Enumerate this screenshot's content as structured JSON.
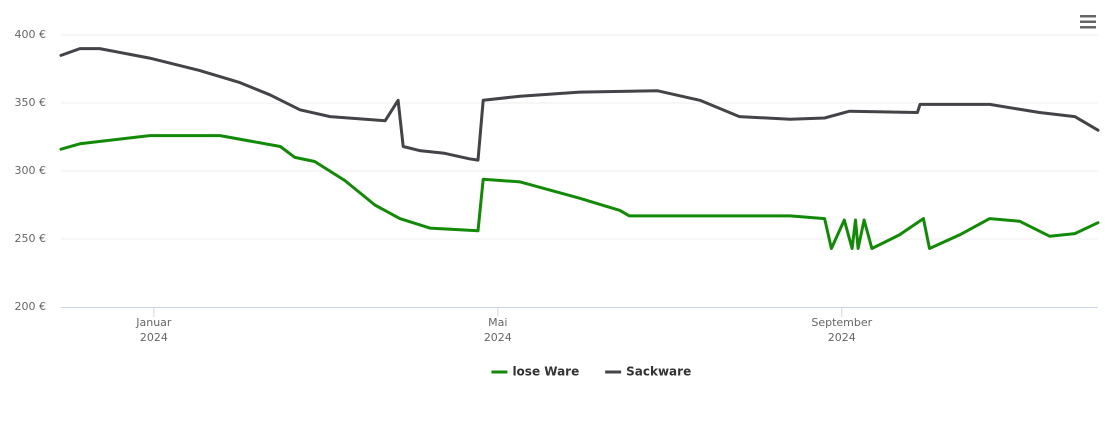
{
  "chart_data": {
    "type": "line",
    "xlim": [
      -0.08,
      11.98
    ],
    "xticks": [
      {
        "value": 1,
        "label": "Januar",
        "year": "2024"
      },
      {
        "value": 5,
        "label": "Mai",
        "year": "2024"
      },
      {
        "value": 9,
        "label": "September",
        "year": "2024"
      }
    ],
    "ylim": [
      200,
      400
    ],
    "yticks": [
      {
        "value": 200,
        "label": "200 €"
      },
      {
        "value": 250,
        "label": "250 €"
      },
      {
        "value": 300,
        "label": "300 €"
      },
      {
        "value": 350,
        "label": "350 €"
      },
      {
        "value": 400,
        "label": "400 €"
      }
    ],
    "grid": true,
    "legend": "bottom",
    "series": [
      {
        "name": "lose Ware",
        "color": "#138a07",
        "x": [
          -0.08,
          0.14,
          0.95,
          1.77,
          2.47,
          2.64,
          2.87,
          3.22,
          3.57,
          3.86,
          4.21,
          4.77,
          4.83,
          5.26,
          5.95,
          6.42,
          6.53,
          7.35,
          8.4,
          8.8,
          8.88,
          9.03,
          9.12,
          9.16,
          9.19,
          9.26,
          9.35,
          9.67,
          9.95,
          10.02,
          10.37,
          10.72,
          11.07,
          11.42,
          11.71,
          11.98
        ],
        "values": [
          316,
          320,
          326,
          326,
          318,
          310,
          307,
          293,
          275,
          265,
          258,
          256,
          294,
          292,
          280,
          271,
          267,
          267,
          267,
          265,
          243,
          264,
          243,
          264,
          243,
          264,
          243,
          253,
          265,
          243,
          253,
          265,
          263,
          252,
          254,
          262
        ]
      },
      {
        "name": "Sackware",
        "color": "#434348",
        "x": [
          -0.08,
          0.14,
          0.37,
          0.95,
          1.53,
          2.0,
          2.35,
          2.7,
          3.05,
          3.69,
          3.84,
          3.9,
          4.09,
          4.38,
          4.67,
          4.77,
          4.83,
          5.26,
          5.95,
          6.86,
          7.35,
          7.81,
          8.4,
          8.8,
          9.09,
          9.88,
          9.91,
          10.72,
          11.3,
          11.71,
          11.98
        ],
        "values": [
          385,
          390,
          390,
          383,
          374,
          365,
          356,
          345,
          340,
          337,
          352,
          318,
          315,
          313,
          309,
          308,
          352,
          355,
          358,
          359,
          352,
          340,
          338,
          339,
          344,
          343,
          349,
          349,
          343,
          340,
          330
        ]
      }
    ]
  }
}
